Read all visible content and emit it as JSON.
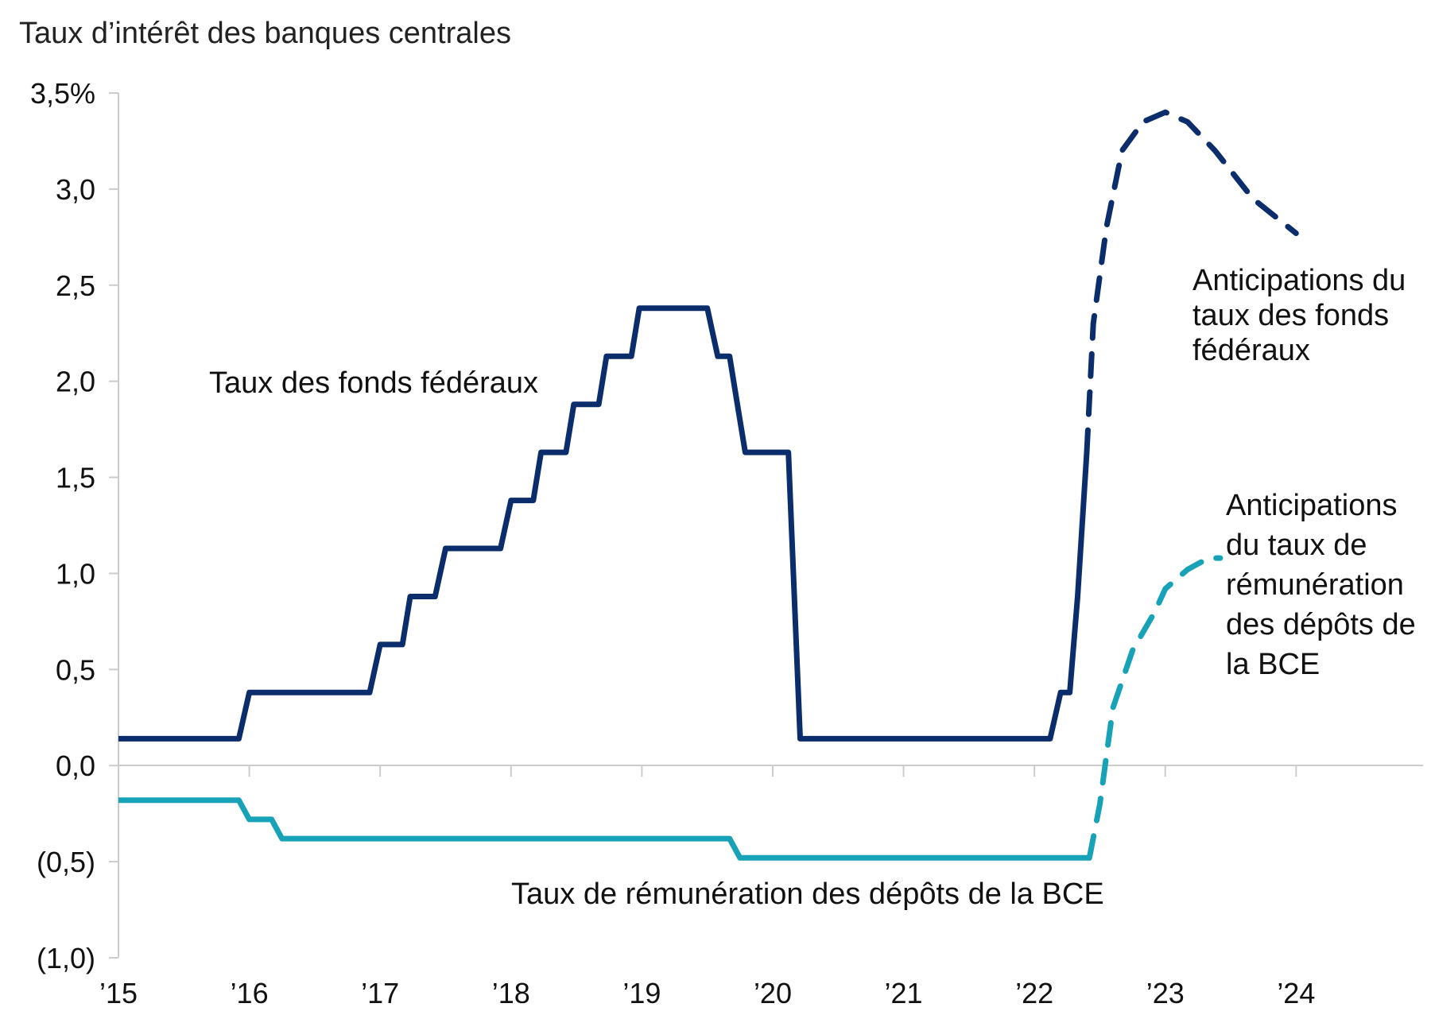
{
  "chart_data": {
    "type": "line",
    "title": "Taux d’intérêt des banques centrales",
    "xlabel": "",
    "ylabel": "",
    "x_tick_labels": [
      "’15",
      "’16",
      "’17",
      "’18",
      "’19",
      "’20",
      "’21",
      "’22",
      "’23",
      "’24"
    ],
    "x_tick_values": [
      2015,
      2016,
      2017,
      2018,
      2019,
      2020,
      2021,
      2022,
      2023,
      2024
    ],
    "xlim": [
      2015,
      2024.97
    ],
    "y_tick_labels": [
      "(1,0)",
      "(0,5)",
      "0,0",
      "0,5",
      "1,0",
      "1,5",
      "2,0",
      "2,5",
      "3,0",
      "3,5%"
    ],
    "y_tick_values": [
      -1.0,
      -0.5,
      0.0,
      0.5,
      1.0,
      1.5,
      2.0,
      2.5,
      3.0,
      3.5
    ],
    "ylim": [
      -1.0,
      3.5
    ],
    "grid": false,
    "legend": "none",
    "series": [
      {
        "name": "Taux des fonds fédéraux",
        "color": "#0b2d6b",
        "style": "solid",
        "points": [
          [
            2015.0,
            0.14
          ],
          [
            2015.92,
            0.14
          ],
          [
            2016.0,
            0.38
          ],
          [
            2016.92,
            0.38
          ],
          [
            2017.0,
            0.63
          ],
          [
            2017.17,
            0.63
          ],
          [
            2017.23,
            0.88
          ],
          [
            2017.42,
            0.88
          ],
          [
            2017.5,
            1.13
          ],
          [
            2017.92,
            1.13
          ],
          [
            2018.0,
            1.38
          ],
          [
            2018.17,
            1.38
          ],
          [
            2018.23,
            1.63
          ],
          [
            2018.42,
            1.63
          ],
          [
            2018.48,
            1.88
          ],
          [
            2018.67,
            1.88
          ],
          [
            2018.73,
            2.13
          ],
          [
            2018.92,
            2.13
          ],
          [
            2018.98,
            2.38
          ],
          [
            2019.5,
            2.38
          ],
          [
            2019.58,
            2.13
          ],
          [
            2019.67,
            2.13
          ],
          [
            2019.73,
            1.88
          ],
          [
            2019.79,
            1.63
          ],
          [
            2020.12,
            1.63
          ],
          [
            2020.21,
            0.14
          ],
          [
            2022.12,
            0.14
          ],
          [
            2022.2,
            0.38
          ],
          [
            2022.27,
            0.38
          ],
          [
            2022.33,
            0.88
          ],
          [
            2022.4,
            1.63
          ]
        ]
      },
      {
        "name": "Anticipations du taux des fonds fédéraux",
        "color": "#0b2d6b",
        "style": "dashed",
        "points": [
          [
            2022.4,
            1.63
          ],
          [
            2022.45,
            2.3
          ],
          [
            2022.55,
            2.8
          ],
          [
            2022.67,
            3.2
          ],
          [
            2022.83,
            3.35
          ],
          [
            2023.0,
            3.4
          ],
          [
            2023.17,
            3.35
          ],
          [
            2023.38,
            3.2
          ],
          [
            2023.67,
            2.95
          ],
          [
            2024.0,
            2.77
          ]
        ]
      },
      {
        "name": "Taux de rémunération des dépôts de la BCE",
        "color": "#17a2b8",
        "style": "solid",
        "points": [
          [
            2015.0,
            -0.18
          ],
          [
            2015.92,
            -0.18
          ],
          [
            2016.0,
            -0.28
          ],
          [
            2016.17,
            -0.28
          ],
          [
            2016.25,
            -0.38
          ],
          [
            2019.67,
            -0.38
          ],
          [
            2019.75,
            -0.48
          ],
          [
            2022.42,
            -0.48
          ]
        ]
      },
      {
        "name": "Anticipations du taux de rémunération des dépôts de la BCE",
        "color": "#17a2b8",
        "style": "dashed",
        "points": [
          [
            2022.42,
            -0.48
          ],
          [
            2022.5,
            -0.2
          ],
          [
            2022.6,
            0.3
          ],
          [
            2022.75,
            0.6
          ],
          [
            2022.92,
            0.8
          ],
          [
            2023.0,
            0.92
          ],
          [
            2023.17,
            1.02
          ],
          [
            2023.33,
            1.08
          ],
          [
            2023.42,
            1.08
          ]
        ]
      }
    ],
    "annotations": [
      {
        "lines": [
          "Taux des fonds fédéraux"
        ]
      },
      {
        "lines": [
          "Anticipations du",
          "taux des fonds",
          "fédéraux"
        ]
      },
      {
        "lines": [
          "Anticipations",
          "du taux de",
          "rémunération",
          "des dépôts de",
          "la BCE"
        ]
      },
      {
        "lines": [
          "Taux de rémunération des dépôts de la BCE"
        ]
      }
    ]
  }
}
